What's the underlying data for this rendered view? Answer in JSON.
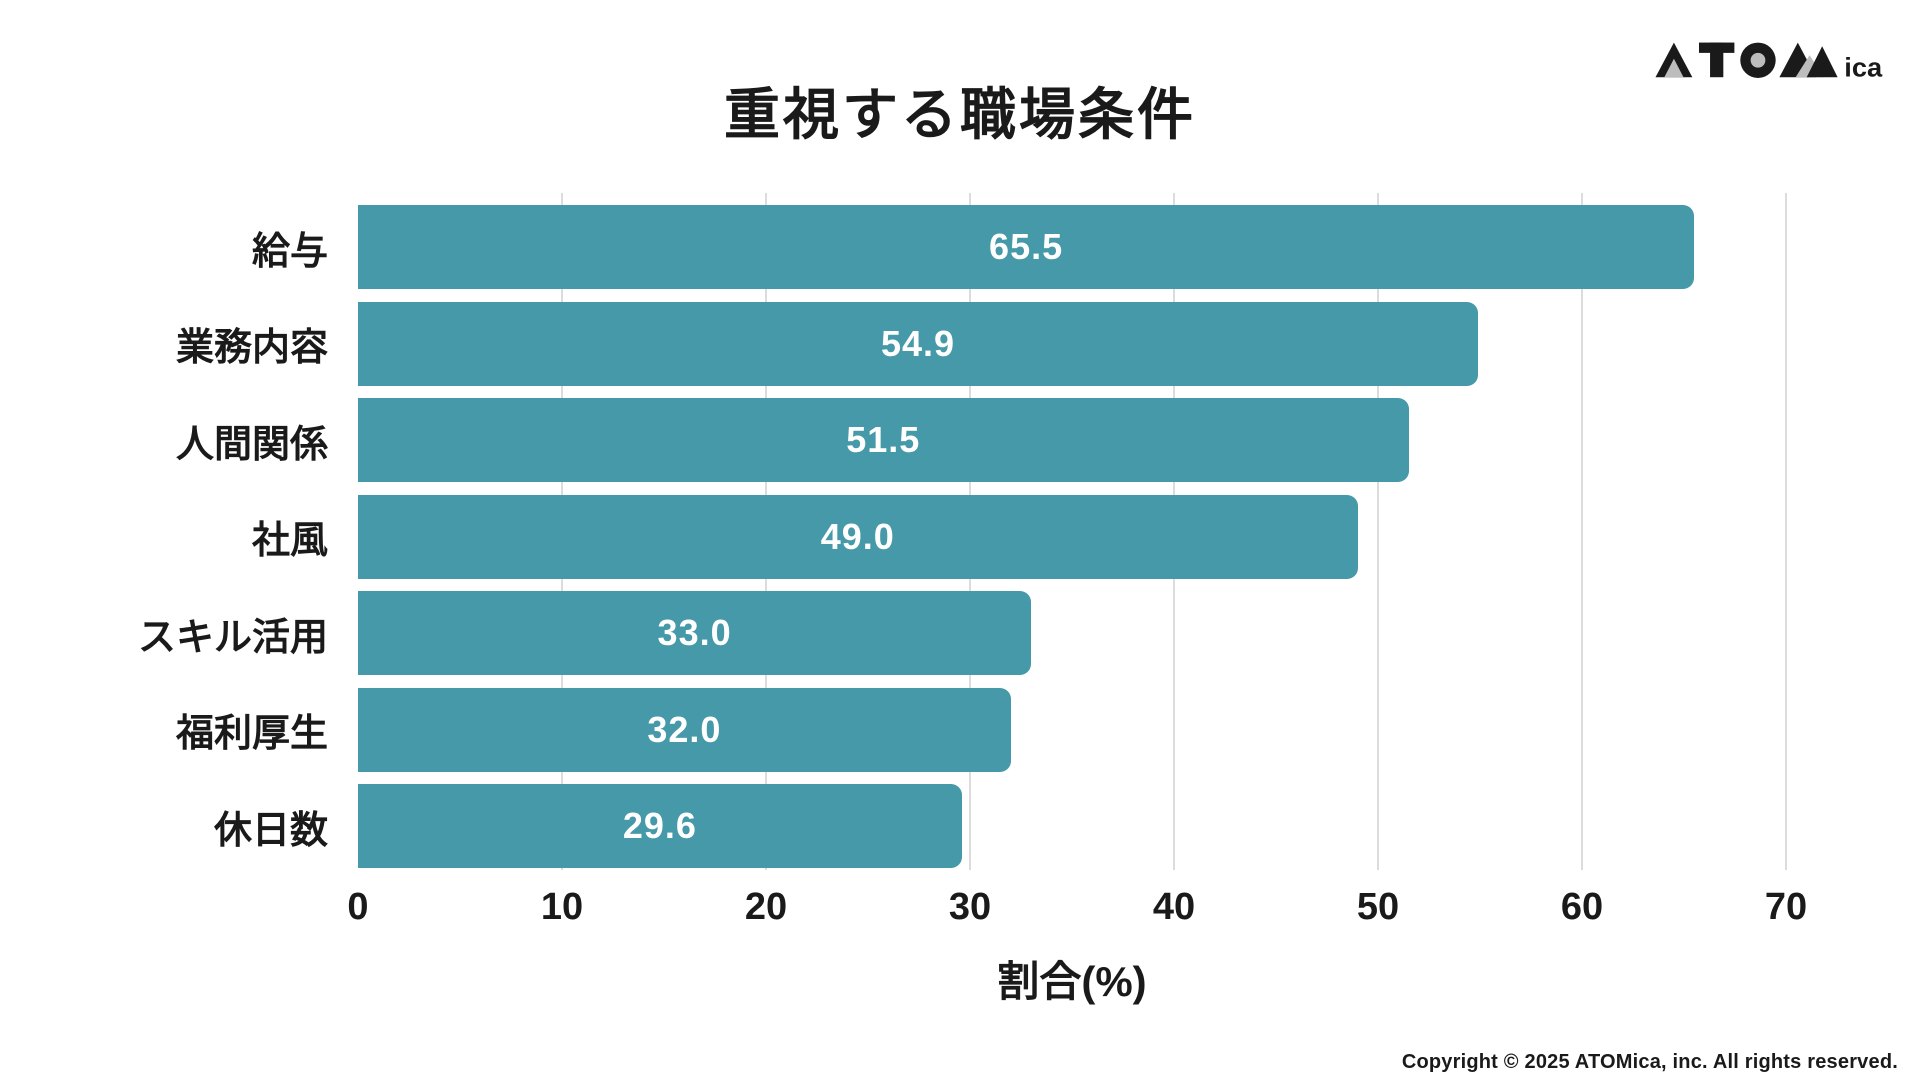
{
  "title": "重視する職場条件",
  "logo": {
    "text_ica": "ica",
    "black": "#1a1a1a",
    "gray": "#bdbdbd"
  },
  "chart_data": {
    "type": "bar",
    "orientation": "horizontal",
    "title": "重視する職場条件",
    "categories": [
      "給与",
      "業務内容",
      "人間関係",
      "社風",
      "スキル活用",
      "福利厚生",
      "休日数"
    ],
    "values": [
      65.5,
      54.9,
      51.5,
      49.0,
      33.0,
      32.0,
      29.6
    ],
    "value_labels": [
      "65.5",
      "54.9",
      "51.5",
      "49.0",
      "33.0",
      "32.0",
      "29.6"
    ],
    "xlabel": "割合(%)",
    "xlim": [
      0,
      70
    ],
    "xticks": [
      0,
      10,
      20,
      30,
      40,
      50,
      60,
      70
    ],
    "grid": true,
    "legend": "none",
    "bar_color": "#4699a8",
    "value_label_color": "#ffffff",
    "gridline_color": "#dcdcdc"
  },
  "footer": {
    "copyright": "Copyright © 2025 ATOMica, inc. All rights reserved."
  }
}
